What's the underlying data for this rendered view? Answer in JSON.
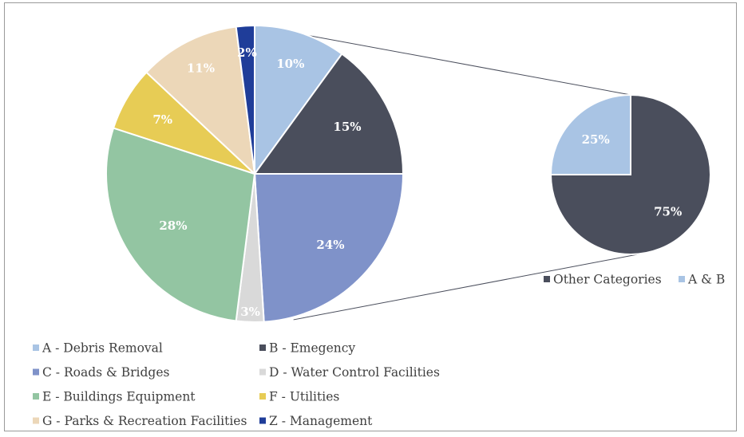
{
  "chart_data": {
    "type": "pie",
    "subtype": "pie-of-pie",
    "main_pie": {
      "slices": [
        {
          "key": "A",
          "label": "10%",
          "value": 10,
          "color": "#a9c4e4"
        },
        {
          "key": "B",
          "label": "15%",
          "value": 15,
          "color": "#4a4e5c"
        },
        {
          "key": "C",
          "label": "24%",
          "value": 24,
          "color": "#7f92c9"
        },
        {
          "key": "D",
          "label": "3%",
          "value": 3,
          "color": "#d9d9d9"
        },
        {
          "key": "E",
          "label": "28%",
          "value": 28,
          "color": "#93c5a2"
        },
        {
          "key": "F",
          "label": "7%",
          "value": 7,
          "color": "#e7cc55"
        },
        {
          "key": "G",
          "label": "11%",
          "value": 11,
          "color": "#ecd7b8"
        },
        {
          "key": "Z",
          "label": "2%",
          "value": 2,
          "color": "#1f3d99"
        }
      ]
    },
    "secondary_pie": {
      "slices": [
        {
          "key": "Other",
          "label": "75%",
          "value": 75,
          "color": "#4a4e5c"
        },
        {
          "key": "AB",
          "label": "25%",
          "value": 25,
          "color": "#a9c4e4"
        }
      ]
    },
    "legend_main": [
      {
        "key": "A",
        "text": "A - Debris Removal",
        "color": "#a9c4e4"
      },
      {
        "key": "B",
        "text": "B - Emegency",
        "color": "#4a4e5c"
      },
      {
        "key": "C",
        "text": "C - Roads & Bridges",
        "color": "#7f92c9"
      },
      {
        "key": "D",
        "text": "D - Water Control Facilities",
        "color": "#d9d9d9"
      },
      {
        "key": "E",
        "text": "E - Buildings Equipment",
        "color": "#93c5a2"
      },
      {
        "key": "F",
        "text": "F - Utilities",
        "color": "#e7cc55"
      },
      {
        "key": "G",
        "text": "G - Parks & Recreation Facilities",
        "color": "#ecd7b8"
      },
      {
        "key": "Z",
        "text": "Z - Management",
        "color": "#1f3d99"
      }
    ],
    "legend_secondary": [
      {
        "key": "Other",
        "text": "Other Categories",
        "color": "#4a4e5c"
      },
      {
        "key": "AB",
        "text": "A & B",
        "color": "#a9c4e4"
      }
    ],
    "legend_placement": "bottom"
  }
}
